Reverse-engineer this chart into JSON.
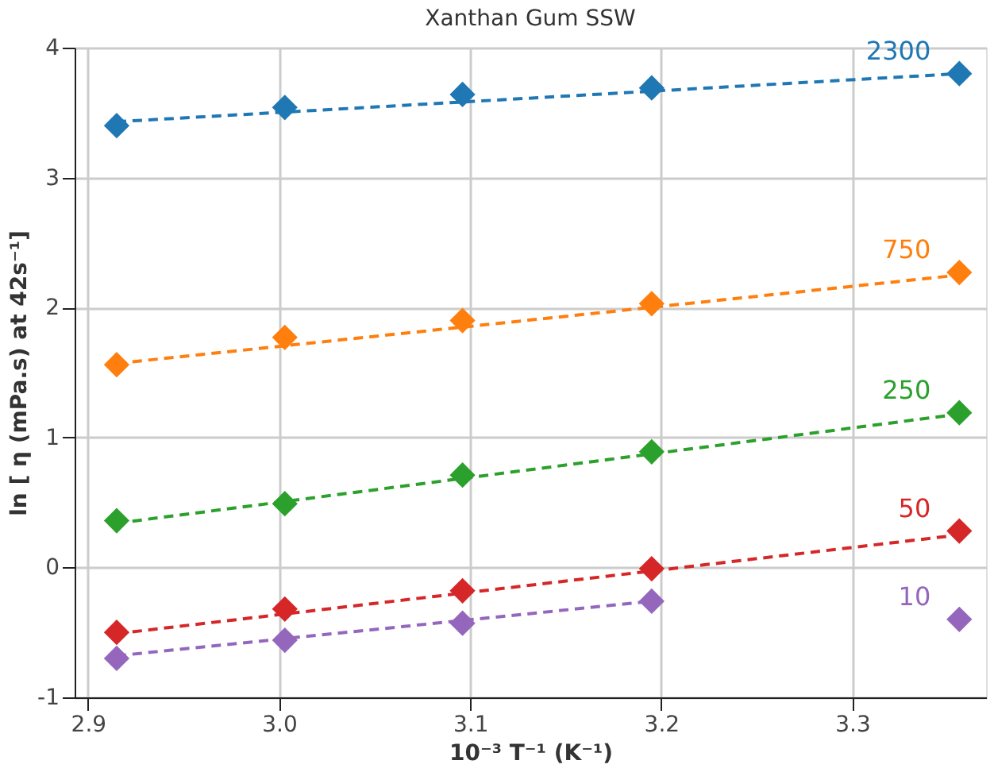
{
  "chart_data": {
    "type": "scatter",
    "title": "Xanthan Gum SSW",
    "xlabel": "10⁻³ T⁻¹ (K⁻¹)",
    "ylabel": "ln [ η (mPa.s) at 42s⁻¹]",
    "xlim": [
      2.893,
      3.37
    ],
    "ylim": [
      -1,
      4
    ],
    "xticks": [
      2.9,
      {
        "value": 3.0,
        "label": "3.0"
      },
      3.1,
      3.2,
      3.3
    ],
    "yticks": [
      -1,
      0,
      1,
      2,
      3,
      4
    ],
    "grid": true,
    "marker": "diamond",
    "series": [
      {
        "name": "2300",
        "color": "#1f77b4",
        "x": [
          2.915,
          3.003,
          3.096,
          3.195,
          3.356
        ],
        "values": [
          3.4,
          3.54,
          3.64,
          3.69,
          3.8
        ]
      },
      {
        "name": "750",
        "color": "#ff7f0e",
        "x": [
          2.915,
          3.003,
          3.096,
          3.195,
          3.356
        ],
        "values": [
          1.56,
          1.77,
          1.9,
          2.03,
          2.27
        ]
      },
      {
        "name": "250",
        "color": "#2ca02c",
        "x": [
          2.915,
          3.003,
          3.096,
          3.195,
          3.356
        ],
        "values": [
          0.36,
          0.49,
          0.71,
          0.89,
          1.19
        ]
      },
      {
        "name": "50",
        "color": "#d62728",
        "x": [
          2.915,
          3.003,
          3.096,
          3.195,
          3.356
        ],
        "values": [
          -0.5,
          -0.32,
          -0.18,
          -0.01,
          0.28
        ]
      },
      {
        "name": "10",
        "color": "#9467bd",
        "x": [
          2.915,
          3.003,
          3.096,
          3.195,
          3.356
        ],
        "values": [
          -0.7,
          -0.56,
          -0.43,
          -0.26,
          -0.4
        ]
      },
      {
        "type": "line",
        "marker": "none",
        "line_style": "dashed",
        "color": "#1f77b4",
        "x": [
          2.915,
          3.356
        ],
        "values": [
          3.43,
          3.8
        ]
      },
      {
        "type": "line",
        "marker": "none",
        "line_style": "dashed",
        "color": "#ff7f0e",
        "x": [
          2.915,
          3.356
        ],
        "values": [
          1.57,
          2.25
        ]
      },
      {
        "type": "line",
        "marker": "none",
        "line_style": "dashed",
        "color": "#2ca02c",
        "x": [
          2.915,
          3.356
        ],
        "values": [
          0.34,
          1.18
        ]
      },
      {
        "type": "line",
        "marker": "none",
        "line_style": "dashed",
        "color": "#d62728",
        "x": [
          2.915,
          3.356
        ],
        "values": [
          -0.51,
          0.25
        ]
      },
      {
        "type": "line",
        "marker": "none",
        "line_style": "dashed",
        "color": "#9467bd",
        "x": [
          2.915,
          3.195
        ],
        "values": [
          -0.68,
          -0.26
        ]
      }
    ]
  }
}
